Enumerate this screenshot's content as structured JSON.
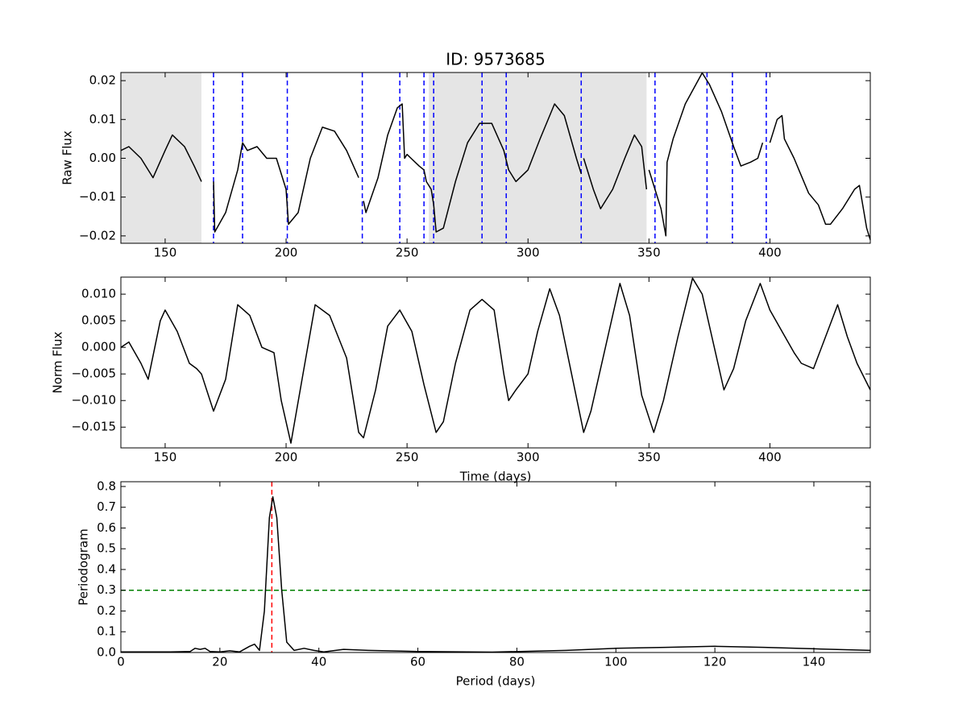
{
  "chart_data": [
    {
      "type": "line",
      "title": "ID: 9573685",
      "ylabel": "Raw Flux",
      "xlim": [
        131.7,
        441.5
      ],
      "xticks": [
        150,
        200,
        250,
        300,
        350,
        400
      ],
      "ylim": [
        -0.0219,
        0.0221
      ],
      "yticks": [
        {
          "value": -0.02,
          "label": "−0.02"
        },
        {
          "value": -0.01,
          "label": "−0.01"
        },
        {
          "value": 0,
          "label": "0.00"
        },
        0.01,
        0.02
      ],
      "spans": [
        [
          131.7,
          165
        ],
        [
          259,
          349
        ]
      ],
      "span_color": "#e5e5e5",
      "vlines": {
        "color": "#0000ff",
        "values": [
          170,
          182,
          200.5,
          231.5,
          247,
          257,
          261,
          281,
          291,
          322,
          352.5,
          374,
          384.5,
          398.5
        ]
      },
      "x": [
        131.7,
        135,
        140,
        145,
        150,
        153,
        158,
        162,
        165,
        167,
        170,
        170.5,
        175,
        180,
        182,
        184,
        188,
        192,
        196,
        200,
        201,
        205,
        210,
        215,
        220,
        225,
        230,
        231,
        232,
        233,
        238,
        242,
        246,
        248,
        249,
        250,
        255,
        257,
        258,
        260,
        261,
        262,
        265,
        270,
        275,
        280,
        285,
        290,
        292,
        295,
        300,
        305,
        311,
        315,
        320,
        322,
        322.5,
        323,
        327,
        330,
        335,
        340,
        344,
        347,
        349,
        349.5,
        350,
        355,
        357,
        357.5,
        360,
        365,
        372,
        375,
        380,
        385,
        388,
        392,
        395,
        397,
        398.5,
        400,
        403,
        405,
        406,
        410,
        412,
        416,
        420,
        423,
        425,
        430,
        435,
        437,
        440,
        441.5
      ],
      "series": [
        {
          "color": "#000000",
          "values": [
            0.002,
            0.003,
            0.0,
            -0.005,
            0.002,
            0.006,
            0.003,
            -0.002,
            -0.006,
            null,
            -0.006,
            -0.019,
            -0.014,
            -0.003,
            0.004,
            0.002,
            0.003,
            0.0,
            0.0,
            -0.008,
            -0.017,
            -0.014,
            0.0,
            0.008,
            0.007,
            0.002,
            -0.005,
            null,
            -0.011,
            -0.014,
            -0.005,
            0.006,
            0.013,
            0.014,
            0.0,
            0.001,
            -0.002,
            -0.003,
            -0.006,
            -0.008,
            -0.012,
            -0.019,
            -0.018,
            -0.006,
            0.004,
            0.009,
            0.009,
            0.002,
            -0.003,
            -0.006,
            -0.003,
            0.005,
            0.014,
            0.011,
            0.0,
            -0.004,
            null,
            0.0,
            -0.008,
            -0.013,
            -0.008,
            0.0,
            0.006,
            0.003,
            -0.008,
            null,
            -0.003,
            -0.013,
            -0.02,
            -0.001,
            0.005,
            0.014,
            0.022,
            0.019,
            0.012,
            0.003,
            -0.002,
            -0.001,
            0.0,
            0.004,
            null,
            0.004,
            0.01,
            0.011,
            0.005,
            0.0,
            -0.003,
            -0.009,
            -0.012,
            -0.017,
            -0.017,
            -0.013,
            -0.008,
            -0.007,
            -0.018,
            -0.021
          ]
        }
      ]
    },
    {
      "type": "line",
      "ylabel": "Norm Flux",
      "xlabel": "Time (days)",
      "xlim": [
        131.7,
        441.5
      ],
      "xticks": [
        150,
        200,
        250,
        300,
        350,
        400
      ],
      "ylim": [
        -0.0189,
        0.0132
      ],
      "yticks": [
        {
          "value": -0.015,
          "label": "−0.015"
        },
        {
          "value": -0.01,
          "label": "−0.010"
        },
        {
          "value": -0.005,
          "label": "−0.005"
        },
        {
          "value": 0,
          "label": "0.000"
        },
        {
          "value": 0.005,
          "label": "0.005"
        },
        {
          "value": 0.01,
          "label": "0.010"
        }
      ],
      "x": [
        131.7,
        135,
        140,
        143,
        148,
        150,
        155,
        160,
        163,
        165,
        170,
        175,
        180,
        185,
        190,
        195,
        198,
        202,
        207,
        212,
        218,
        225,
        230,
        232,
        237,
        242,
        247,
        252,
        257,
        262,
        265,
        270,
        276,
        281,
        286,
        290,
        292,
        295,
        300,
        304,
        309,
        313,
        318,
        323,
        326,
        332,
        338,
        342,
        347,
        352,
        356,
        362,
        368,
        372,
        377,
        381,
        385,
        390,
        396,
        400,
        405,
        410,
        413,
        418,
        423,
        428,
        432,
        436,
        441.5
      ],
      "series": [
        {
          "color": "#000000",
          "values": [
            0.0,
            0.001,
            -0.003,
            -0.006,
            0.005,
            0.007,
            0.003,
            -0.003,
            -0.004,
            -0.005,
            -0.012,
            -0.006,
            0.008,
            0.006,
            0.0,
            -0.001,
            -0.01,
            -0.018,
            -0.005,
            0.008,
            0.006,
            -0.002,
            -0.016,
            -0.017,
            -0.008,
            0.004,
            0.007,
            0.003,
            -0.007,
            -0.016,
            -0.014,
            -0.003,
            0.007,
            0.009,
            0.007,
            -0.005,
            -0.01,
            -0.008,
            -0.005,
            0.003,
            0.011,
            0.006,
            -0.005,
            -0.016,
            -0.012,
            0.0,
            0.012,
            0.006,
            -0.009,
            -0.016,
            -0.01,
            0.002,
            0.013,
            0.01,
            0.0,
            -0.008,
            -0.004,
            0.005,
            0.012,
            0.007,
            0.003,
            -0.001,
            -0.003,
            -0.004,
            0.002,
            0.008,
            0.002,
            -0.003,
            -0.008
          ]
        }
      ]
    },
    {
      "type": "line",
      "ylabel": "Periodogram",
      "xlabel": "Period (days)",
      "xlim": [
        0,
        151.4
      ],
      "xticks": [
        0,
        20,
        40,
        60,
        80,
        100,
        120,
        140
      ],
      "ylim": [
        0,
        0.823
      ],
      "yticks": [
        {
          "value": 0,
          "label": "0.0"
        },
        0.1,
        0.2,
        0.3,
        0.4,
        0.5,
        0.6,
        0.7,
        0.8
      ],
      "vlines": {
        "color": "#ff0000",
        "values": [
          30.5
        ]
      },
      "hlines": {
        "color": "#008000",
        "values": [
          0.3
        ]
      },
      "x": [
        0,
        10,
        14,
        15,
        16,
        17,
        18,
        20,
        22,
        24,
        26,
        27,
        28,
        29,
        30,
        30.7,
        31.5,
        32.5,
        33.5,
        35,
        37,
        39,
        41,
        45,
        50,
        60,
        75,
        90,
        100,
        110,
        120,
        130,
        140,
        151.4
      ],
      "series": [
        {
          "color": "#000000",
          "values": [
            0.003,
            0.003,
            0.005,
            0.02,
            0.015,
            0.02,
            0.005,
            0.003,
            0.008,
            0.003,
            0.03,
            0.04,
            0.01,
            0.2,
            0.65,
            0.75,
            0.65,
            0.3,
            0.05,
            0.01,
            0.02,
            0.01,
            0.003,
            0.015,
            0.01,
            0.005,
            0.002,
            0.01,
            0.02,
            0.025,
            0.03,
            0.025,
            0.018,
            0.01
          ]
        }
      ]
    }
  ]
}
